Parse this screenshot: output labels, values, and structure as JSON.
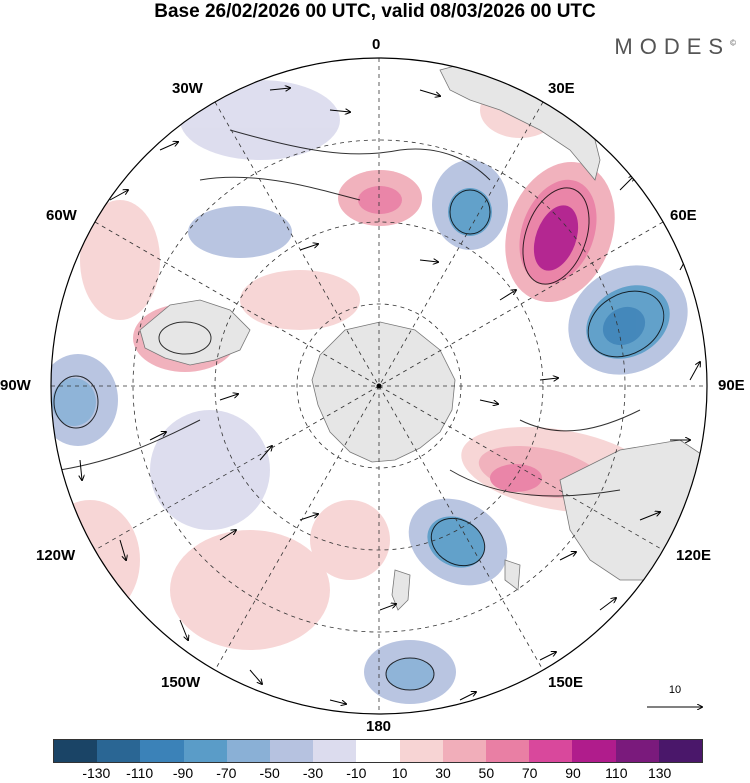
{
  "title": "Base 26/02/2026 00 UTC, valid 08/03/2026 00 UTC",
  "brand": "MODES",
  "brand_mark": "©",
  "map": {
    "projection": "polar-stereographic-south",
    "meridian_labels": {
      "m0": "0",
      "m30e": "30E",
      "m60e": "60E",
      "m90e": "90E",
      "m120e": "120E",
      "m150e": "150E",
      "m180": "180",
      "m150w": "150W",
      "m120w": "120W",
      "m90w": "90W",
      "m60w": "60W",
      "m30w": "30W"
    },
    "reference_vector": "10",
    "colors": {
      "land": "#e6e6e6",
      "coast": "#777777",
      "grid": "#333333",
      "arrow": "#000000"
    }
  },
  "colorbar": {
    "ticks": [
      "-130",
      "-110",
      "-90",
      "-70",
      "-50",
      "-30",
      "-10",
      "10",
      "30",
      "50",
      "70",
      "90",
      "110",
      "130"
    ],
    "colors": [
      "#1a4466",
      "#2a6694",
      "#3b82b8",
      "#5a9cc8",
      "#8ab0d6",
      "#b6c2e0",
      "#dcdcee",
      "#ffffff",
      "#f7d4d4",
      "#f1aeba",
      "#e97fa4",
      "#d9489c",
      "#b01c8c",
      "#7a1a7c",
      "#4a176a"
    ]
  }
}
